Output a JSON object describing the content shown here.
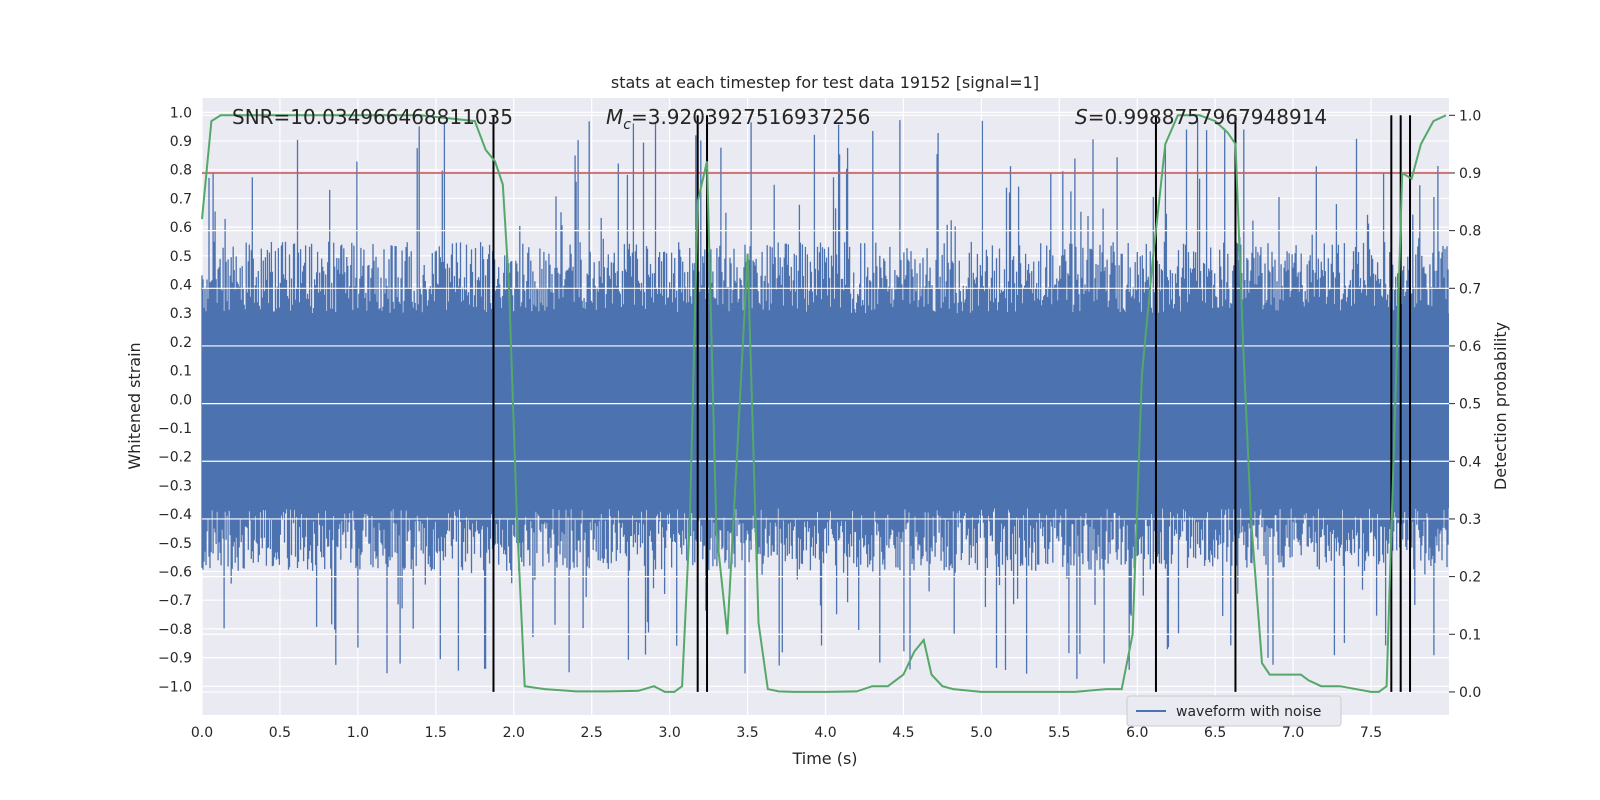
{
  "chart_data": {
    "type": "line",
    "title": "stats at each timestep for test data 19152 [signal=1]",
    "xlabel": "Time (s)",
    "ylabel_left": "Whitened strain",
    "ylabel_right": "Detection probability",
    "xlim": [
      0.0,
      8.0
    ],
    "ylim_left": [
      -1.1,
      1.05
    ],
    "ylim_right": [
      -0.04,
      1.03
    ],
    "x_ticks": [
      "0.0",
      "0.5",
      "1.0",
      "1.5",
      "2.0",
      "2.5",
      "3.0",
      "3.5",
      "4.0",
      "4.5",
      "5.0",
      "5.5",
      "6.0",
      "6.5",
      "7.0",
      "7.5"
    ],
    "y_ticks_left": [
      "1.0",
      "0.9",
      "0.8",
      "0.7",
      "0.6",
      "0.5",
      "0.4",
      "0.3",
      "0.2",
      "0.1",
      "0.0",
      "-0.1",
      "-0.2",
      "-0.3",
      "-0.4",
      "-0.5",
      "-0.6",
      "-0.7",
      "-0.8",
      "-0.9",
      "-1.0"
    ],
    "y_ticks_right": [
      "1.0",
      "0.9",
      "0.8",
      "0.7",
      "0.6",
      "0.5",
      "0.4",
      "0.3",
      "0.2",
      "0.1",
      "0.0"
    ],
    "grid": true,
    "annotations": {
      "snr": "SNR=10.034966468811035",
      "mc_symbol": "M",
      "mc_sub": "c",
      "mc_value": "=3.9203927516937256",
      "s_symbol": "S",
      "s_value": "=0.9988757967948914"
    },
    "threshold": {
      "axis": "right",
      "value": 0.9,
      "color": "#c44e52"
    },
    "vertical_lines_x": [
      1.87,
      3.18,
      3.24,
      6.12,
      6.63,
      7.63,
      7.69,
      7.75
    ],
    "legend": {
      "label": "waveform with noise",
      "placement": "lower right"
    },
    "series": [
      {
        "name": "waveform with noise",
        "axis": "left",
        "color": "#4c72b0",
        "kind": "noise_band",
        "envelope": {
          "typical_max": 0.55,
          "typical_min": -0.6,
          "abs_max": 0.98
        }
      },
      {
        "name": "detection probability",
        "axis": "right",
        "color": "#55a868",
        "x": [
          0.0,
          0.06,
          0.12,
          0.3,
          0.6,
          1.0,
          1.4,
          1.75,
          1.82,
          1.88,
          1.93,
          1.97,
          2.02,
          2.07,
          2.2,
          2.4,
          2.6,
          2.8,
          2.9,
          2.97,
          3.03,
          3.08,
          3.13,
          3.18,
          3.24,
          3.3,
          3.37,
          3.43,
          3.5,
          3.57,
          3.63,
          3.7,
          3.8,
          4.0,
          4.2,
          4.3,
          4.4,
          4.5,
          4.57,
          4.63,
          4.68,
          4.75,
          4.82,
          5.0,
          5.3,
          5.6,
          5.8,
          5.9,
          5.97,
          6.03,
          6.1,
          6.18,
          6.26,
          6.33,
          6.4,
          6.5,
          6.58,
          6.63,
          6.68,
          6.73,
          6.8,
          6.85,
          6.9,
          7.0,
          7.05,
          7.1,
          7.18,
          7.3,
          7.5,
          7.55,
          7.6,
          7.65,
          7.7,
          7.76,
          7.82,
          7.9,
          7.98
        ],
        "values": [
          0.82,
          0.99,
          1.0,
          1.0,
          1.0,
          1.0,
          1.0,
          0.99,
          0.94,
          0.92,
          0.88,
          0.7,
          0.3,
          0.01,
          0.005,
          0.001,
          0.001,
          0.002,
          0.01,
          0.0,
          0.0,
          0.01,
          0.3,
          0.85,
          0.92,
          0.28,
          0.1,
          0.4,
          0.76,
          0.12,
          0.005,
          0.001,
          0.0,
          0.0,
          0.001,
          0.01,
          0.01,
          0.03,
          0.07,
          0.09,
          0.03,
          0.01,
          0.005,
          0.0,
          0.0,
          0.0,
          0.005,
          0.005,
          0.1,
          0.55,
          0.75,
          0.95,
          1.0,
          1.0,
          1.0,
          0.99,
          0.97,
          0.95,
          0.6,
          0.3,
          0.05,
          0.03,
          0.03,
          0.03,
          0.03,
          0.02,
          0.01,
          0.01,
          0.0,
          0.0,
          0.01,
          0.45,
          0.9,
          0.89,
          0.95,
          0.99,
          1.0
        ]
      }
    ]
  }
}
